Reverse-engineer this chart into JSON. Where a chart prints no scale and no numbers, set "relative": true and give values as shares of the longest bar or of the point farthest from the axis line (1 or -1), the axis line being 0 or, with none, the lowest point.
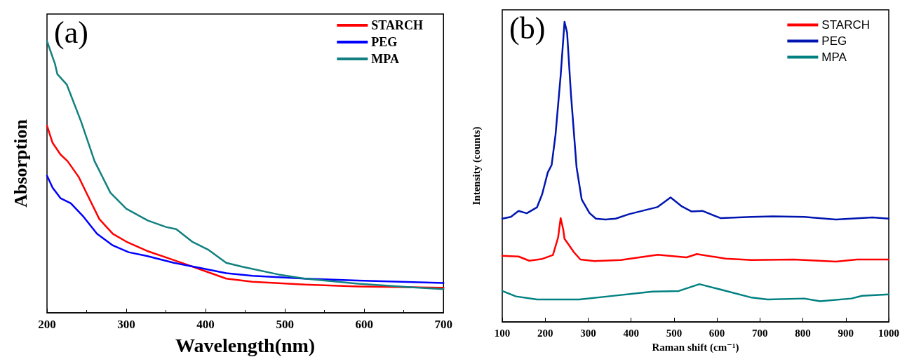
{
  "chart_data": [
    {
      "type": "line",
      "xlabel": "Wavelength(nm)",
      "ylabel": "Absorption",
      "annotations": [
        "(a)"
      ],
      "relative": true,
      "xlim": [
        200,
        700
      ],
      "xticks": [
        200,
        300,
        400,
        500,
        600,
        700
      ],
      "tick_labels": "x",
      "grid": false,
      "legend": "top right",
      "marker": "none",
      "line_style": "solid",
      "series": [
        {
          "name": "STARCH",
          "color": "#ff0000",
          "x": [
            200,
            207,
            217,
            226,
            240,
            253,
            266,
            283,
            300,
            326,
            360,
            393,
            426,
            459,
            525,
            592,
            700
          ],
          "values": [
            0.689,
            0.626,
            0.583,
            0.558,
            0.5,
            0.422,
            0.345,
            0.291,
            0.262,
            0.228,
            0.194,
            0.16,
            0.126,
            0.114,
            0.104,
            0.097,
            0.092
          ]
        },
        {
          "name": "PEG",
          "color": "#0000ff",
          "x": [
            200,
            207,
            217,
            230,
            246,
            263,
            283,
            303,
            326,
            360,
            393,
            426,
            459,
            525,
            592,
            700
          ],
          "values": [
            0.505,
            0.461,
            0.422,
            0.403,
            0.354,
            0.291,
            0.248,
            0.223,
            0.209,
            0.184,
            0.165,
            0.146,
            0.136,
            0.126,
            0.119,
            0.11
          ]
        },
        {
          "name": "MPA",
          "color": "#128080",
          "x": [
            200,
            210,
            213,
            225,
            243,
            260,
            280,
            300,
            327,
            350,
            363,
            383,
            403,
            426,
            446,
            492,
            525,
            592,
            658,
            700
          ],
          "values": [
            1.0,
            0.917,
            0.879,
            0.84,
            0.704,
            0.558,
            0.442,
            0.383,
            0.34,
            0.316,
            0.308,
            0.262,
            0.233,
            0.184,
            0.17,
            0.141,
            0.126,
            0.107,
            0.094,
            0.087
          ]
        }
      ]
    },
    {
      "type": "line",
      "xlabel": "Raman shift (cm⁻¹)",
      "ylabel": "Intensity (counts)",
      "annotations": [
        "(b)"
      ],
      "relative": true,
      "xlim": [
        100,
        1000
      ],
      "xticks": [
        100,
        200,
        300,
        400,
        500,
        600,
        700,
        800,
        900,
        1000
      ],
      "tick_labels": "x",
      "grid": false,
      "legend": "top right",
      "marker": "none",
      "line_style": "solid",
      "series": [
        {
          "name": "STARCH",
          "color": "#ff0000",
          "x": [
            100,
            138,
            163,
            193,
            218,
            230,
            236,
            242,
            245,
            254,
            267,
            282,
            315,
            376,
            462,
            529,
            553,
            620,
            681,
            779,
            877,
            926,
            1000
          ],
          "values": [
            0.22,
            0.218,
            0.204,
            0.21,
            0.223,
            0.281,
            0.346,
            0.308,
            0.277,
            0.259,
            0.232,
            0.208,
            0.203,
            0.206,
            0.224,
            0.215,
            0.226,
            0.211,
            0.206,
            0.208,
            0.201,
            0.208,
            0.208
          ]
        },
        {
          "name": "PEG",
          "color": "#0015b0",
          "x": [
            100,
            120,
            138,
            157,
            181,
            193,
            206,
            215,
            224,
            236,
            245,
            251,
            260,
            273,
            285,
            303,
            318,
            340,
            364,
            395,
            462,
            492,
            517,
            541,
            566,
            608,
            681,
            730,
            803,
            877,
            962,
            1000
          ],
          "values": [
            0.344,
            0.35,
            0.37,
            0.362,
            0.382,
            0.426,
            0.498,
            0.523,
            0.623,
            0.821,
            1.0,
            0.964,
            0.758,
            0.516,
            0.408,
            0.363,
            0.344,
            0.341,
            0.344,
            0.359,
            0.383,
            0.415,
            0.386,
            0.368,
            0.37,
            0.346,
            0.35,
            0.352,
            0.35,
            0.341,
            0.348,
            0.344
          ]
        },
        {
          "name": "MPA",
          "color": "#008080",
          "x": [
            100,
            132,
            181,
            279,
            346,
            450,
            511,
            559,
            608,
            681,
            718,
            803,
            840,
            913,
            938,
            1000
          ],
          "values": [
            0.103,
            0.085,
            0.075,
            0.075,
            0.085,
            0.101,
            0.103,
            0.126,
            0.108,
            0.081,
            0.075,
            0.078,
            0.069,
            0.078,
            0.087,
            0.092
          ]
        }
      ]
    }
  ]
}
